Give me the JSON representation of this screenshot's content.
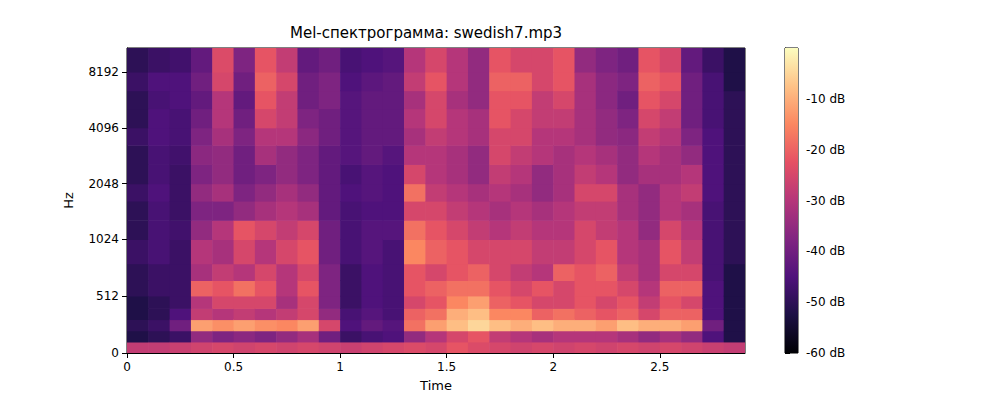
{
  "chart_data": {
    "type": "heatmap",
    "title": "Mel-спектрограмма: swedish7.mp3",
    "x_label": "Time",
    "y_label": "Hz",
    "xlim": [
      0,
      2.9
    ],
    "xticks": [
      0,
      0.5,
      1,
      1.5,
      2,
      2.5
    ],
    "ylim": [
      0,
      11025
    ],
    "yticks": [
      0,
      512,
      1024,
      2048,
      4096,
      8192
    ],
    "times": [
      0,
      0.1,
      0.2,
      0.3,
      0.4,
      0.5,
      0.6,
      0.7,
      0.8,
      0.9,
      1.0,
      1.1,
      1.2,
      1.3,
      1.4,
      1.5,
      1.6,
      1.7,
      1.8,
      1.9,
      2.0,
      2.1,
      2.2,
      2.3,
      2.4,
      2.5,
      2.6,
      2.7,
      2.8,
      2.9
    ],
    "freqs": [
      0,
      100,
      200,
      300,
      400,
      512,
      650,
      800,
      1024,
      1300,
      1650,
      2048,
      2600,
      3300,
      4096,
      5200,
      6500,
      8192,
      11025
    ],
    "cells": [
      [
        -28,
        -52,
        -50,
        -52,
        -52,
        -50,
        -50,
        -48,
        -50,
        -50,
        -48,
        -50,
        -50,
        -48,
        -50,
        -50,
        -48,
        -50
      ],
      [
        -28,
        -50,
        -48,
        -50,
        -50,
        -48,
        -48,
        -46,
        -46,
        -46,
        -45,
        -46,
        -46,
        -45,
        -45,
        -46,
        -45,
        -48
      ],
      [
        -27,
        -48,
        -40,
        -45,
        -48,
        -48,
        -48,
        -48,
        -47,
        -48,
        -48,
        -48,
        -47,
        -46,
        -46,
        -45,
        -45,
        -47
      ],
      [
        -26,
        -35,
        -12,
        -28,
        -30,
        -20,
        -32,
        -30,
        -35,
        -38,
        -35,
        -38,
        -36,
        -38,
        -40,
        -42,
        -40,
        -42
      ],
      [
        -25,
        -38,
        -14,
        -30,
        -25,
        -22,
        -28,
        -32,
        -30,
        -38,
        -32,
        -35,
        -35,
        -32,
        -30,
        -30,
        -25,
        -24
      ],
      [
        -26,
        -36,
        -12,
        -28,
        -25,
        -18,
        -30,
        -25,
        -22,
        -35,
        -38,
        -40,
        -40,
        -38,
        -40,
        -42,
        -40,
        -38
      ],
      [
        -25,
        -38,
        -14,
        -30,
        -25,
        -22,
        -25,
        -30,
        -25,
        -32,
        -35,
        -38,
        -32,
        -30,
        -25,
        -22,
        -20,
        -22
      ],
      [
        -26,
        -35,
        -15,
        -28,
        -32,
        -30,
        -30,
        -25,
        -28,
        -30,
        -32,
        -35,
        -35,
        -30,
        -28,
        -28,
        -25,
        -28
      ],
      [
        -25,
        -32,
        -12,
        -25,
        -25,
        -22,
        -25,
        -22,
        -25,
        -32,
        -35,
        -38,
        -38,
        -36,
        -38,
        -40,
        -40,
        -42
      ],
      [
        -26,
        -40,
        -25,
        -35,
        -38,
        -38,
        -38,
        -40,
        -40,
        -42,
        -42,
        -42,
        -42,
        -40,
        -40,
        -38,
        -38,
        -40
      ],
      [
        -27,
        -48,
        -45,
        -46,
        -48,
        -48,
        -48,
        -46,
        -46,
        -46,
        -45,
        -46,
        -44,
        -44,
        -44,
        -44,
        -45,
        -46
      ],
      [
        -26,
        -46,
        -42,
        -44,
        -45,
        -45,
        -45,
        -44,
        -44,
        -45,
        -44,
        -44,
        -42,
        -42,
        -42,
        -42,
        -43,
        -45
      ],
      [
        -25,
        -45,
        -44,
        -46,
        -46,
        -46,
        -46,
        -46,
        -44,
        -45,
        -45,
        -45,
        -44,
        -42,
        -42,
        -42,
        -42,
        -44
      ],
      [
        -24,
        -35,
        -18,
        -20,
        -25,
        -22,
        -22,
        -15,
        -18,
        -25,
        -18,
        -25,
        -30,
        -32,
        -30,
        -32,
        -28,
        -30
      ],
      [
        -25,
        -30,
        -12,
        -18,
        -22,
        -20,
        -25,
        -20,
        -22,
        -25,
        -28,
        -30,
        -30,
        -28,
        -25,
        -25,
        -22,
        -25
      ],
      [
        -22,
        -25,
        -8,
        -10,
        -15,
        -18,
        -22,
        -22,
        -25,
        -28,
        -30,
        -32,
        -32,
        -30,
        -30,
        -32,
        -30,
        -30
      ],
      [
        -24,
        -22,
        -5,
        -8,
        -12,
        -18,
        -20,
        -25,
        -28,
        -30,
        -32,
        -35,
        -35,
        -32,
        -32,
        -35,
        -35,
        -35
      ],
      [
        -25,
        -28,
        -8,
        -15,
        -20,
        -22,
        -25,
        -25,
        -30,
        -32,
        -30,
        -28,
        -25,
        -25,
        -22,
        -22,
        -20,
        -22
      ],
      [
        -26,
        -30,
        -10,
        -15,
        -22,
        -25,
        -28,
        -25,
        -28,
        -30,
        -32,
        -30,
        -28,
        -25,
        -25,
        -22,
        -20,
        -25
      ],
      [
        -25,
        -32,
        -8,
        -20,
        -25,
        -22,
        -30,
        -28,
        -30,
        -32,
        -35,
        -35,
        -30,
        -30,
        -28,
        -28,
        -25,
        -25
      ],
      [
        -26,
        -30,
        -10,
        -18,
        -25,
        -25,
        -20,
        -28,
        -30,
        -30,
        -32,
        -32,
        -32,
        -30,
        -28,
        -25,
        -22,
        -22
      ],
      [
        -25,
        -30,
        -10,
        -20,
        -22,
        -22,
        -22,
        -25,
        -25,
        -28,
        -25,
        -28,
        -30,
        -32,
        -32,
        -32,
        -32,
        -35
      ],
      [
        -26,
        -30,
        -12,
        -22,
        -25,
        -22,
        -20,
        -22,
        -28,
        -28,
        -25,
        -30,
        -32,
        -35,
        -35,
        -36,
        -36,
        -38
      ],
      [
        -25,
        -32,
        -8,
        -20,
        -22,
        -25,
        -28,
        -30,
        -30,
        -32,
        -32,
        -35,
        -35,
        -36,
        -38,
        -40,
        -38,
        -40
      ],
      [
        -26,
        -35,
        -10,
        -25,
        -28,
        -30,
        -32,
        -32,
        -35,
        -35,
        -35,
        -32,
        -30,
        -28,
        -25,
        -22,
        -20,
        -22
      ],
      [
        -25,
        -32,
        -10,
        -20,
        -22,
        -20,
        -25,
        -22,
        -25,
        -30,
        -30,
        -32,
        -32,
        -30,
        -28,
        -25,
        -22,
        -25
      ],
      [
        -26,
        -35,
        -12,
        -20,
        -25,
        -20,
        -25,
        -28,
        -30,
        -32,
        -28,
        -30,
        -35,
        -38,
        -40,
        -40,
        -40,
        -42
      ],
      [
        -27,
        -45,
        -40,
        -45,
        -45,
        -45,
        -46,
        -46,
        -46,
        -46,
        -45,
        -45,
        -45,
        -45,
        -46,
        -46,
        -46,
        -48
      ],
      [
        -28,
        -52,
        -52,
        -52,
        -52,
        -52,
        -52,
        -50,
        -50,
        -50,
        -50,
        -50,
        -50,
        -50,
        -50,
        -50,
        -52,
        -52
      ]
    ],
    "colorbar_lim": [
      -60,
      0
    ],
    "colorbar_ticks": [
      {
        "value": -60,
        "label": "-60 dB"
      },
      {
        "value": -50,
        "label": "-50 dB"
      },
      {
        "value": -40,
        "label": "-40 dB"
      },
      {
        "value": -30,
        "label": "-30 dB"
      },
      {
        "value": -20,
        "label": "-20 dB"
      },
      {
        "value": -10,
        "label": "-10 dB"
      }
    ]
  }
}
